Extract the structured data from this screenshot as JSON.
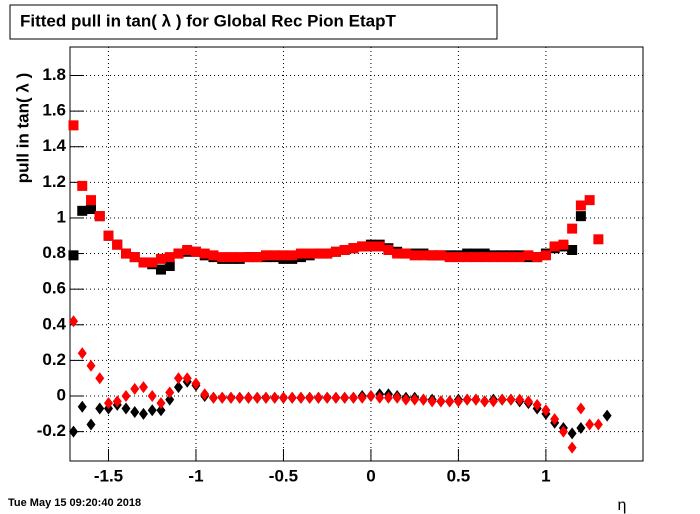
{
  "chart_data": {
    "type": "scatter",
    "title": "Fitted pull in tan( λ ) for Global Rec Pion EtapT",
    "y_label": "pull in tan( λ )",
    "x_label": "η",
    "timestamp": "Tue May 15 09:20:40 2018",
    "xlim": [
      -1.72,
      1.555
    ],
    "ylim": [
      -0.365,
      1.96
    ],
    "xticks": [
      -1.5,
      -1,
      -0.5,
      0,
      0.5,
      1
    ],
    "yticks": [
      -0.2,
      0,
      0.2,
      0.4,
      0.6,
      0.8,
      1,
      1.2,
      1.4,
      1.6,
      1.8
    ],
    "grid": true,
    "x": [
      -1.7,
      -1.65,
      -1.6,
      -1.55,
      -1.5,
      -1.45,
      -1.4,
      -1.35,
      -1.3,
      -1.25,
      -1.2,
      -1.15,
      -1.1,
      -1.05,
      -1,
      -0.95,
      -0.9,
      -0.85,
      -0.8,
      -0.75,
      -0.7,
      -0.65,
      -0.6,
      -0.55,
      -0.5,
      -0.45,
      -0.4,
      -0.35,
      -0.3,
      -0.25,
      -0.2,
      -0.15,
      -0.1,
      -0.05,
      0,
      0.05,
      0.1,
      0.15,
      0.2,
      0.25,
      0.3,
      0.35,
      0.4,
      0.45,
      0.5,
      0.55,
      0.6,
      0.65,
      0.7,
      0.75,
      0.8,
      0.85,
      0.9,
      0.95,
      1,
      1.05,
      1.1,
      1.15,
      1.2,
      1.25,
      1.3,
      1.35
    ],
    "series": [
      {
        "color": "#000000",
        "marker": "square",
        "values": [
          0.79,
          1.04,
          1.05,
          1.01,
          0.9,
          0.85,
          0.8,
          0.78,
          0.75,
          0.74,
          0.71,
          0.73,
          0.8,
          0.81,
          0.81,
          0.79,
          0.78,
          0.77,
          0.77,
          0.77,
          0.78,
          0.78,
          0.78,
          0.78,
          0.77,
          0.77,
          0.78,
          0.79,
          0.8,
          0.8,
          0.81,
          0.82,
          0.83,
          0.84,
          0.85,
          0.85,
          0.83,
          0.81,
          0.8,
          0.8,
          0.8,
          0.79,
          0.79,
          0.79,
          0.79,
          0.8,
          0.8,
          0.8,
          0.79,
          0.79,
          0.79,
          0.79,
          0.78,
          0.78,
          0.8,
          0.83,
          0.84,
          0.82,
          1.01,
          null,
          null,
          null
        ]
      },
      {
        "color": "#ff0000",
        "marker": "square",
        "values": [
          1.52,
          1.18,
          1.1,
          1.01,
          0.9,
          0.85,
          0.8,
          0.78,
          0.75,
          0.75,
          0.77,
          0.78,
          0.8,
          0.82,
          0.81,
          0.8,
          0.79,
          0.78,
          0.78,
          0.78,
          0.78,
          0.78,
          0.79,
          0.79,
          0.79,
          0.79,
          0.8,
          0.8,
          0.8,
          0.8,
          0.81,
          0.82,
          0.83,
          0.84,
          0.84,
          0.84,
          0.82,
          0.8,
          0.8,
          0.79,
          0.79,
          0.79,
          0.79,
          0.78,
          0.78,
          0.78,
          0.78,
          0.78,
          0.78,
          0.78,
          0.78,
          0.78,
          0.79,
          0.78,
          0.79,
          0.84,
          0.85,
          0.94,
          1.07,
          1.1,
          0.88,
          null
        ]
      },
      {
        "color": "#000000",
        "marker": "diamond",
        "values": [
          -0.2,
          -0.06,
          -0.16,
          -0.07,
          -0.07,
          -0.05,
          -0.07,
          -0.09,
          -0.1,
          -0.08,
          -0.08,
          -0.02,
          0.05,
          0.08,
          0.06,
          0.0,
          -0.01,
          -0.01,
          -0.01,
          -0.01,
          -0.01,
          -0.01,
          -0.01,
          -0.01,
          -0.01,
          -0.01,
          -0.01,
          -0.01,
          -0.01,
          -0.01,
          -0.01,
          -0.01,
          -0.01,
          0.0,
          0.0,
          0.01,
          0.01,
          0.0,
          -0.01,
          -0.01,
          -0.02,
          -0.02,
          -0.03,
          -0.03,
          -0.02,
          -0.02,
          -0.02,
          -0.03,
          -0.02,
          -0.02,
          -0.02,
          -0.03,
          -0.04,
          -0.07,
          -0.1,
          -0.15,
          -0.18,
          -0.21,
          -0.18,
          null,
          null,
          -0.11
        ]
      },
      {
        "color": "#ff0000",
        "marker": "diamond",
        "values": [
          0.42,
          0.24,
          0.17,
          0.1,
          -0.04,
          -0.03,
          0.0,
          0.04,
          0.05,
          0.0,
          -0.04,
          0.02,
          0.1,
          0.1,
          0.07,
          0.01,
          -0.01,
          -0.01,
          -0.01,
          -0.01,
          -0.01,
          -0.01,
          -0.01,
          -0.01,
          -0.01,
          -0.01,
          -0.01,
          -0.01,
          -0.01,
          -0.01,
          -0.01,
          -0.01,
          -0.01,
          -0.01,
          0.0,
          -0.01,
          -0.01,
          -0.01,
          -0.02,
          -0.02,
          -0.02,
          -0.03,
          -0.03,
          -0.03,
          -0.03,
          -0.02,
          -0.02,
          -0.03,
          -0.03,
          -0.02,
          -0.02,
          -0.02,
          -0.03,
          -0.05,
          -0.08,
          -0.13,
          -0.2,
          -0.29,
          -0.07,
          -0.16,
          -0.16,
          null
        ]
      }
    ]
  }
}
